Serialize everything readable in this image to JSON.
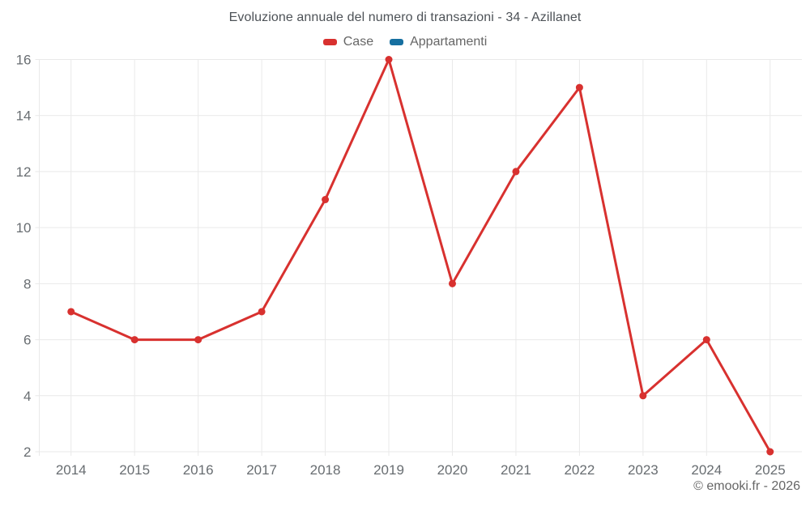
{
  "chart_data": {
    "type": "line",
    "title": "Evoluzione annuale del numero di transazioni - 34 - Azillanet",
    "categories": [
      "2014",
      "2015",
      "2016",
      "2017",
      "2018",
      "2019",
      "2020",
      "2021",
      "2022",
      "2023",
      "2024",
      "2025"
    ],
    "series": [
      {
        "name": "Case",
        "color": "#d8312f",
        "values": [
          7,
          6,
          6,
          7,
          11,
          16,
          8,
          12,
          15,
          4,
          6,
          2
        ]
      },
      {
        "name": "Appartamenti",
        "color": "#166fa0",
        "values": []
      }
    ],
    "ylim": [
      2,
      16
    ],
    "yticks": [
      2,
      4,
      6,
      8,
      10,
      12,
      14,
      16
    ],
    "grid": true,
    "legend_position": "top",
    "grid_color": "#e9e9e9",
    "marker_radius": 4.5,
    "line_width": 3
  },
  "footer": {
    "copyright": "© emooki.fr - 2026"
  }
}
